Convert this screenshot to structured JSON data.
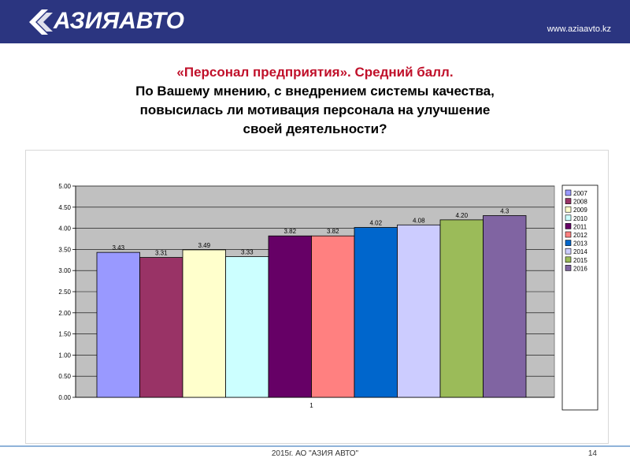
{
  "header": {
    "logo_text": "АЗИЯАВТО",
    "url": "www.aziaavto.kz",
    "bg_color": "#2b3580"
  },
  "title": {
    "line1": "«Персонал предприятия». Средний балл.",
    "line2": "По Вашему мнению, с внедрением системы качества,",
    "line3": "повысилась ли мотивация персонала на улучшение",
    "line4": "своей деятельности?"
  },
  "chart_data": {
    "type": "bar",
    "categories": [
      "1"
    ],
    "ylim": [
      0,
      5
    ],
    "yticks": [
      "0.00",
      "0.50",
      "1.00",
      "1.50",
      "2.00",
      "2.50",
      "3.00",
      "3.50",
      "4.00",
      "4.50",
      "5.00"
    ],
    "grid": true,
    "legend_position": "right",
    "series": [
      {
        "name": "2007",
        "value": 3.43,
        "label": "3.43",
        "color": "#9999ff"
      },
      {
        "name": "2008",
        "value": 3.31,
        "label": "3.31",
        "color": "#993366"
      },
      {
        "name": "2009",
        "value": 3.49,
        "label": "3.49",
        "color": "#ffffcc"
      },
      {
        "name": "2010",
        "value": 3.33,
        "label": "3.33",
        "color": "#ccffff"
      },
      {
        "name": "2011",
        "value": 3.82,
        "label": "3.82",
        "color": "#660066"
      },
      {
        "name": "2012",
        "value": 3.82,
        "label": "3.82",
        "color": "#ff8080"
      },
      {
        "name": "2013",
        "value": 4.02,
        "label": "4.02",
        "color": "#0066cc"
      },
      {
        "name": "2014",
        "value": 4.08,
        "label": "4.08",
        "color": "#ccccff"
      },
      {
        "name": "2015",
        "value": 4.2,
        "label": "4.20",
        "color": "#9bbb59"
      },
      {
        "name": "2016",
        "value": 4.3,
        "label": "4.3",
        "color": "#8064a2"
      }
    ]
  },
  "footer": {
    "text": "2015г. АО \"АЗИЯ АВТО\"",
    "page": "14"
  }
}
